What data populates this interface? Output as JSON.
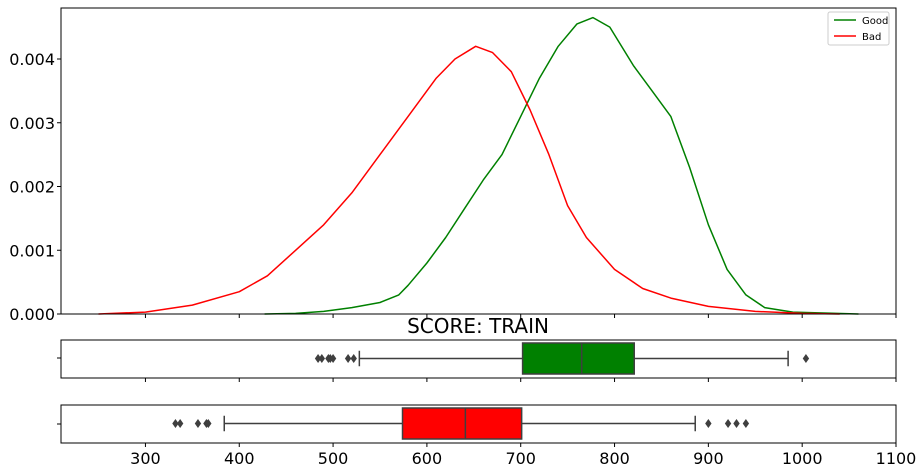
{
  "chart_data": [
    {
      "type": "line",
      "subtype": "kde",
      "xlim": [
        210,
        1100
      ],
      "ylim": [
        0,
        0.0048
      ],
      "y_ticks": [
        "0.000",
        "0.001",
        "0.002",
        "0.003",
        "0.004"
      ],
      "y_tick_values": [
        0,
        0.001,
        0.002,
        0.003,
        0.004
      ],
      "grid": false,
      "legend_position": "top-right",
      "series": [
        {
          "name": "Good",
          "color": "#008000",
          "points": [
            [
              427,
              0
            ],
            [
              460,
              1e-05
            ],
            [
              490,
              4e-05
            ],
            [
              520,
              0.0001
            ],
            [
              550,
              0.00018
            ],
            [
              570,
              0.0003
            ],
            [
              580,
              0.00045
            ],
            [
              600,
              0.0008
            ],
            [
              620,
              0.0012
            ],
            [
              640,
              0.00165
            ],
            [
              660,
              0.0021
            ],
            [
              680,
              0.0025
            ],
            [
              700,
              0.0031
            ],
            [
              720,
              0.0037
            ],
            [
              740,
              0.0042
            ],
            [
              760,
              0.00455
            ],
            [
              777,
              0.00465
            ],
            [
              795,
              0.0045
            ],
            [
              820,
              0.0039
            ],
            [
              840,
              0.0035
            ],
            [
              860,
              0.0031
            ],
            [
              880,
              0.0023
            ],
            [
              900,
              0.0014
            ],
            [
              920,
              0.0007
            ],
            [
              940,
              0.0003
            ],
            [
              960,
              0.0001
            ],
            [
              990,
              3e-05
            ],
            [
              1060,
              0
            ]
          ]
        },
        {
          "name": "Bad",
          "color": "#ff0000",
          "points": [
            [
              250,
              0
            ],
            [
              300,
              3e-05
            ],
            [
              350,
              0.00014
            ],
            [
              400,
              0.00035
            ],
            [
              430,
              0.0006
            ],
            [
              460,
              0.001
            ],
            [
              490,
              0.0014
            ],
            [
              520,
              0.0019
            ],
            [
              550,
              0.0025
            ],
            [
              580,
              0.0031
            ],
            [
              610,
              0.0037
            ],
            [
              630,
              0.004
            ],
            [
              652,
              0.0042
            ],
            [
              670,
              0.0041
            ],
            [
              690,
              0.0038
            ],
            [
              710,
              0.0032
            ],
            [
              730,
              0.0025
            ],
            [
              750,
              0.0017
            ],
            [
              770,
              0.0012
            ],
            [
              800,
              0.0007
            ],
            [
              830,
              0.0004
            ],
            [
              860,
              0.00025
            ],
            [
              900,
              0.00012
            ],
            [
              950,
              4e-05
            ],
            [
              1000,
              1e-05
            ],
            [
              1040,
              0
            ]
          ]
        }
      ]
    },
    {
      "type": "box",
      "title": "SCORE: TRAIN",
      "color": "#008000",
      "q1": 702,
      "median": 765,
      "q3": 821,
      "whisker_low": 528,
      "whisker_high": 985,
      "outliers": [
        484,
        488,
        495,
        497,
        500,
        516,
        522,
        1004
      ]
    },
    {
      "type": "box",
      "color": "#ff0000",
      "q1": 574,
      "median": 641,
      "q3": 701,
      "whisker_low": 384,
      "whisker_high": 886,
      "outliers": [
        332,
        337,
        356,
        365,
        367,
        900,
        921,
        930,
        940
      ]
    }
  ],
  "x_ticks": [
    "300",
    "400",
    "500",
    "600",
    "700",
    "800",
    "900",
    "1000",
    "1100"
  ],
  "x_tick_values": [
    300,
    400,
    500,
    600,
    700,
    800,
    900,
    1000,
    1100
  ]
}
